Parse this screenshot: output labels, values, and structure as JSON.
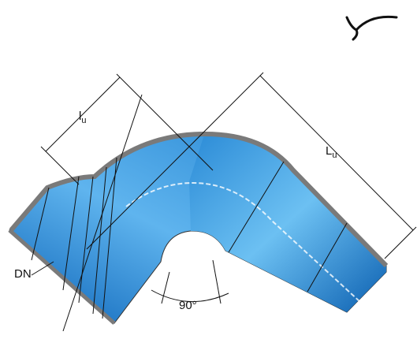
{
  "labels": {
    "socket_length": {
      "symbol": "l",
      "subscript": "u"
    },
    "laying_length": {
      "symbol": "L",
      "subscript": "u"
    },
    "nominal_diameter": "DN",
    "angle": "90°"
  }
}
